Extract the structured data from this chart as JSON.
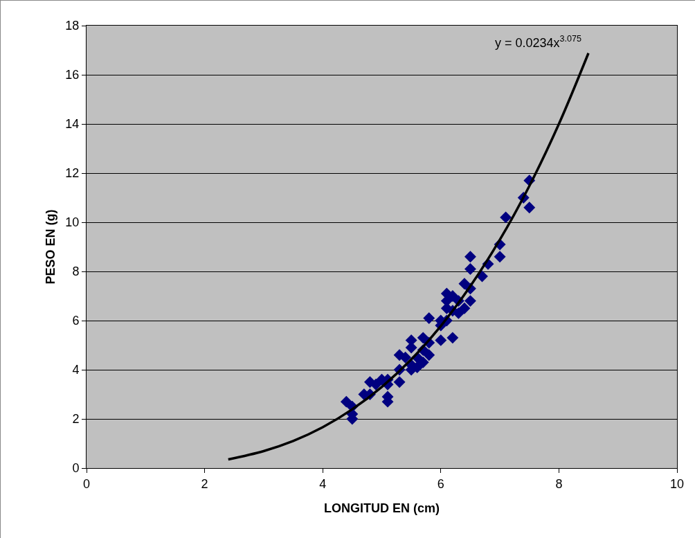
{
  "chart_data": {
    "type": "scatter",
    "xlabel": "LONGITUD EN (cm)",
    "ylabel": "PESO EN (g)",
    "xlim": [
      0,
      10
    ],
    "xticks": [
      0,
      2,
      4,
      6,
      8,
      10
    ],
    "ylim": [
      0,
      18
    ],
    "yticks": [
      0,
      2,
      4,
      6,
      8,
      10,
      12,
      14,
      16,
      18
    ],
    "grid": "y",
    "annotations": [
      "y = 0.0234x$^{3.075}$"
    ],
    "series": [
      {
        "color": "#000080",
        "marker": "diamond",
        "x": [
          4.4,
          4.5,
          4.5,
          4.5,
          4.7,
          4.8,
          4.8,
          4.9,
          5.0,
          5.1,
          5.1,
          5.1,
          5.1,
          5.3,
          5.3,
          5.3,
          5.4,
          5.5,
          5.5,
          5.5,
          5.5,
          5.6,
          5.6,
          5.7,
          5.7,
          5.7,
          5.8,
          5.8,
          5.8,
          6.0,
          6.0,
          6.0,
          6.1,
          6.1,
          6.1,
          6.1,
          6.2,
          6.2,
          6.2,
          6.3,
          6.3,
          6.4,
          6.4,
          6.5,
          6.5,
          6.5,
          6.5,
          6.7,
          6.8,
          7.0,
          7.0,
          7.1,
          7.4,
          7.5,
          7.5
        ],
        "values": [
          2.7,
          2.5,
          2.2,
          2.0,
          3.0,
          3.0,
          3.5,
          3.4,
          3.6,
          3.6,
          3.4,
          2.9,
          2.7,
          3.5,
          4.0,
          4.6,
          4.5,
          5.2,
          4.9,
          4.2,
          4.0,
          4.5,
          4.1,
          4.8,
          5.3,
          4.3,
          4.6,
          5.1,
          6.1,
          5.2,
          6.0,
          5.8,
          6.0,
          6.5,
          6.8,
          7.1,
          7.0,
          6.4,
          5.3,
          6.3,
          6.8,
          6.5,
          7.5,
          6.8,
          7.3,
          8.1,
          8.6,
          7.8,
          8.3,
          8.6,
          9.1,
          10.2,
          11.0,
          10.6,
          11.7
        ]
      },
      {
        "type": "line",
        "color": "#000000",
        "marker": "none",
        "line_style": "solid",
        "x": [
          2.4,
          3,
          3.5,
          4,
          4.5,
          5,
          5.5,
          6,
          6.5,
          7,
          7.5,
          8,
          8.5
        ],
        "values": [
          0.35,
          0.69,
          1.1,
          1.66,
          2.39,
          3.3,
          4.42,
          5.78,
          7.4,
          9.29,
          11.48,
          14.0,
          16.88
        ]
      }
    ]
  }
}
